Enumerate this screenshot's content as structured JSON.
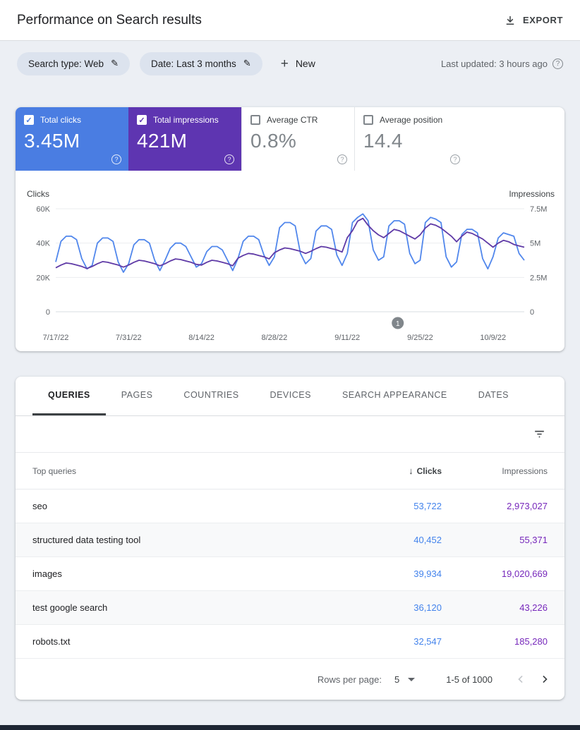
{
  "header": {
    "title": "Performance on Search results",
    "export_label": "EXPORT"
  },
  "filters": {
    "search_type_chip": "Search type: Web",
    "date_chip": "Date: Last 3 months",
    "new_label": "New",
    "last_updated": "Last updated: 3 hours ago"
  },
  "metrics": [
    {
      "label": "Total clicks",
      "value": "3.45M",
      "selected": true,
      "color": "#4a7de2"
    },
    {
      "label": "Total impressions",
      "value": "421M",
      "selected": true,
      "color": "#5e35b1"
    },
    {
      "label": "Average CTR",
      "value": "0.8%",
      "selected": false
    },
    {
      "label": "Average position",
      "value": "14.4",
      "selected": false
    }
  ],
  "chart_data": {
    "type": "line",
    "x_labels": [
      "7/17/22",
      "7/31/22",
      "8/14/22",
      "8/28/22",
      "9/11/22",
      "9/25/22",
      "10/9/22"
    ],
    "y_left": {
      "label": "Clicks",
      "ticks": [
        "0",
        "20K",
        "40K",
        "60K"
      ],
      "max": 60,
      "unit": "thousands"
    },
    "y_right": {
      "label": "Impressions",
      "ticks": [
        "0",
        "2.5M",
        "5M",
        "7.5M"
      ],
      "max": 7.5,
      "unit": "millions"
    },
    "grid": true,
    "legend_position": "none",
    "series": [
      {
        "name": "Clicks",
        "axis": "left",
        "color": "#5187ec",
        "values": [
          29,
          41,
          44,
          44,
          42,
          31,
          25,
          27,
          40,
          43,
          43,
          41,
          29,
          23,
          28,
          39,
          42,
          42,
          40,
          30,
          24,
          30,
          37,
          40,
          40,
          38,
          32,
          26,
          28,
          35,
          38,
          38,
          36,
          30,
          24,
          31,
          41,
          44,
          44,
          42,
          33,
          27,
          32,
          49,
          52,
          52,
          50,
          34,
          28,
          31,
          47,
          50,
          50,
          48,
          33,
          27,
          34,
          52,
          55,
          57,
          53,
          36,
          30,
          32,
          50,
          53,
          53,
          51,
          34,
          28,
          30,
          52,
          55,
          54,
          52,
          32,
          26,
          29,
          45,
          48,
          48,
          46,
          31,
          25,
          32,
          43,
          46,
          45,
          44,
          34,
          30
        ]
      },
      {
        "name": "Impressions",
        "axis": "right",
        "color": "#5f3aa6",
        "values": [
          3.2,
          3.4,
          3.55,
          3.5,
          3.4,
          3.3,
          3.15,
          3.3,
          3.5,
          3.65,
          3.6,
          3.5,
          3.4,
          3.25,
          3.4,
          3.6,
          3.75,
          3.7,
          3.6,
          3.5,
          3.35,
          3.5,
          3.7,
          3.85,
          3.8,
          3.7,
          3.6,
          3.45,
          3.4,
          3.6,
          3.75,
          3.7,
          3.6,
          3.5,
          3.35,
          3.9,
          4.1,
          4.25,
          4.2,
          4.1,
          4.0,
          3.85,
          4.3,
          4.5,
          4.65,
          4.6,
          4.5,
          4.4,
          4.25,
          4.4,
          4.6,
          4.75,
          4.7,
          4.6,
          4.5,
          4.35,
          5.4,
          5.9,
          6.6,
          6.8,
          6.3,
          5.9,
          5.6,
          5.4,
          5.7,
          6.0,
          5.9,
          5.7,
          5.5,
          5.3,
          5.6,
          6.1,
          6.4,
          6.3,
          6.1,
          5.8,
          5.5,
          5.1,
          5.5,
          5.8,
          5.7,
          5.5,
          5.3,
          5.0,
          4.7,
          5.0,
          5.2,
          5.1,
          4.9,
          4.8,
          4.7
        ]
      }
    ],
    "annotation_marker": {
      "label": "1",
      "x_fraction": 0.73
    }
  },
  "table": {
    "tabs": [
      {
        "label": "QUERIES",
        "active": true
      },
      {
        "label": "PAGES",
        "active": false
      },
      {
        "label": "COUNTRIES",
        "active": false
      },
      {
        "label": "DEVICES",
        "active": false
      },
      {
        "label": "SEARCH APPEARANCE",
        "active": false
      },
      {
        "label": "DATES",
        "active": false
      }
    ],
    "columns": {
      "dimension": "Top queries",
      "clicks": "Clicks",
      "impressions": "Impressions"
    },
    "rows": [
      {
        "query": "seo",
        "clicks": "53,722",
        "impressions": "2,973,027"
      },
      {
        "query": "structured data testing tool",
        "clicks": "40,452",
        "impressions": "55,371"
      },
      {
        "query": "images",
        "clicks": "39,934",
        "impressions": "19,020,669"
      },
      {
        "query": "test google search",
        "clicks": "36,120",
        "impressions": "43,226"
      },
      {
        "query": "robots.txt",
        "clicks": "32,547",
        "impressions": "185,280"
      }
    ],
    "pagination": {
      "rows_per_page_label": "Rows per page:",
      "rows_per_page": "5",
      "range": "1-5 of 1000"
    }
  },
  "colors": {
    "clicks_tile": "#4a7de2",
    "impressions_tile": "#5e35b1",
    "clicks_value_text": "#4383ec",
    "impressions_value_text": "#7627bb"
  }
}
